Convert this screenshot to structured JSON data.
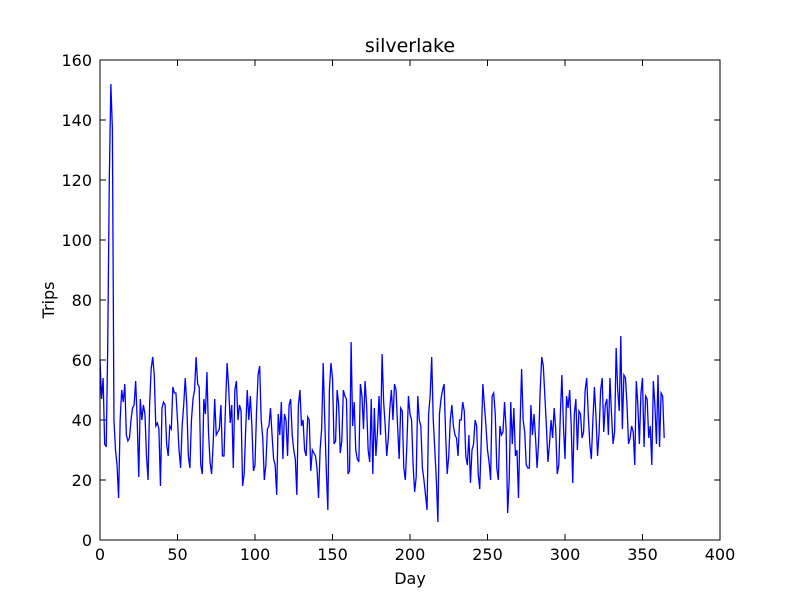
{
  "chart_data": {
    "type": "line",
    "title": "silverlake",
    "xlabel": "Day",
    "ylabel": "Trips",
    "color": "#0000ff",
    "xlim": [
      0,
      400
    ],
    "xticks": [
      0,
      50,
      100,
      150,
      200,
      250,
      300,
      350,
      400
    ],
    "ylim": [
      0,
      160
    ],
    "yticks": [
      0,
      20,
      40,
      60,
      80,
      100,
      120,
      140,
      160
    ],
    "x": [
      0,
      1,
      2,
      3,
      4,
      5,
      6,
      7,
      8,
      9,
      10,
      11,
      12,
      13,
      14,
      15,
      16,
      17,
      18,
      19,
      20,
      21,
      22,
      23,
      24,
      25,
      26,
      27,
      28,
      29,
      30,
      31,
      32,
      33,
      34,
      35,
      36,
      37,
      38,
      39,
      40,
      41,
      42,
      43,
      44,
      45,
      46,
      47,
      48,
      49,
      50,
      51,
      52,
      53,
      54,
      55,
      56,
      57,
      58,
      59,
      60,
      61,
      62,
      63,
      64,
      65,
      66,
      67,
      68,
      69,
      70,
      71,
      72,
      73,
      74,
      75,
      76,
      77,
      78,
      79,
      80,
      81,
      82,
      83,
      84,
      85,
      86,
      87,
      88,
      89,
      90,
      91,
      92,
      93,
      94,
      95,
      96,
      97,
      98,
      99,
      100,
      101,
      102,
      103,
      104,
      105,
      106,
      107,
      108,
      109,
      110,
      111,
      112,
      113,
      114,
      115,
      116,
      117,
      118,
      119,
      120,
      121,
      122,
      123,
      124,
      125,
      126,
      127,
      128,
      129,
      130,
      131,
      132,
      133,
      134,
      135,
      136,
      137,
      138,
      139,
      140,
      141,
      142,
      143,
      144,
      145,
      146,
      147,
      148,
      149,
      150,
      151,
      152,
      153,
      154,
      155,
      156,
      157,
      158,
      159,
      160,
      161,
      162,
      163,
      164,
      165,
      166,
      167,
      168,
      169,
      170,
      171,
      172,
      173,
      174,
      175,
      176,
      177,
      178,
      179,
      180,
      181,
      182,
      183,
      184,
      185,
      186,
      187,
      188,
      189,
      190,
      191,
      192,
      193,
      194,
      195,
      196,
      197,
      198,
      199,
      200,
      201,
      202,
      203,
      204,
      205,
      206,
      207,
      208,
      209,
      210,
      211,
      212,
      213,
      214,
      215,
      216,
      217,
      218,
      219,
      220,
      221,
      222,
      223,
      224,
      225,
      226,
      227,
      228,
      229,
      230,
      231,
      232,
      233,
      234,
      235,
      236,
      237,
      238,
      239,
      240,
      241,
      242,
      243,
      244,
      245,
      246,
      247,
      248,
      249,
      250,
      251,
      252,
      253,
      254,
      255,
      256,
      257,
      258,
      259,
      260,
      261,
      262,
      263,
      264,
      265,
      266,
      267,
      268,
      269,
      270,
      271,
      272,
      273,
      274,
      275,
      276,
      277,
      278,
      279,
      280,
      281,
      282,
      283,
      284,
      285,
      286,
      287,
      288,
      289,
      290,
      291,
      292,
      293,
      294,
      295,
      296,
      297,
      298,
      299,
      300,
      301,
      302,
      303,
      304,
      305,
      306,
      307,
      308,
      309,
      310,
      311,
      312,
      313,
      314,
      315,
      316,
      317,
      318,
      319,
      320,
      321,
      322,
      323,
      324,
      325,
      326,
      327,
      328,
      329,
      330,
      331,
      332,
      333,
      334,
      335,
      336,
      337,
      338,
      339,
      340,
      341,
      342,
      343,
      344,
      345,
      346,
      347,
      348,
      349,
      350,
      351,
      352,
      353,
      354,
      355,
      356,
      357,
      358,
      359,
      360,
      361,
      362,
      363,
      364
    ],
    "values": [
      60,
      47,
      54,
      32,
      31,
      65,
      120,
      152,
      137,
      40,
      30,
      25,
      14,
      40,
      50,
      46,
      52,
      35,
      33,
      34,
      40,
      44,
      45,
      53,
      40,
      21,
      47,
      40,
      45,
      42,
      28,
      20,
      45,
      57,
      61,
      55,
      38,
      39,
      37,
      18,
      44,
      46,
      45,
      32,
      28,
      38,
      37,
      51,
      49,
      49,
      40,
      30,
      24,
      38,
      45,
      54,
      45,
      28,
      24,
      40,
      47,
      50,
      61,
      52,
      51,
      25,
      22,
      47,
      42,
      56,
      36,
      26,
      22,
      32,
      47,
      35,
      36,
      37,
      45,
      28,
      28,
      45,
      59,
      51,
      39,
      45,
      24,
      50,
      53,
      40,
      45,
      43,
      18,
      22,
      37,
      50,
      40,
      48,
      38,
      23,
      25,
      43,
      55,
      58,
      40,
      34,
      20,
      25,
      37,
      38,
      44,
      35,
      27,
      25,
      15,
      42,
      35,
      46,
      27,
      42,
      40,
      28,
      45,
      47,
      35,
      30,
      27,
      15,
      45,
      50,
      38,
      40,
      30,
      28,
      41,
      40,
      23,
      30,
      29,
      28,
      24,
      14,
      30,
      37,
      59,
      40,
      23,
      10,
      50,
      59,
      54,
      32,
      33,
      50,
      45,
      29,
      33,
      50,
      48,
      47,
      22,
      23,
      66,
      38,
      46,
      30,
      27,
      26,
      52,
      48,
      37,
      53,
      45,
      30,
      26,
      47,
      22,
      44,
      28,
      36,
      48,
      35,
      62,
      46,
      38,
      28,
      34,
      44,
      50,
      40,
      52,
      50,
      38,
      27,
      44,
      43,
      24,
      20,
      32,
      48,
      42,
      40,
      25,
      16,
      21,
      48,
      40,
      38,
      24,
      20,
      15,
      10,
      42,
      48,
      61,
      40,
      30,
      20,
      6,
      42,
      47,
      50,
      52,
      35,
      22,
      28,
      40,
      45,
      38,
      35,
      34,
      28,
      40,
      40,
      46,
      43,
      28,
      25,
      35,
      19,
      30,
      32,
      40,
      38,
      22,
      17,
      34,
      52,
      45,
      38,
      30,
      26,
      20,
      48,
      49,
      42,
      24,
      20,
      38,
      35,
      36,
      46,
      37,
      9,
      20,
      46,
      32,
      44,
      28,
      30,
      14,
      38,
      57,
      40,
      36,
      25,
      24,
      24,
      45,
      35,
      42,
      34,
      24,
      33,
      50,
      61,
      58,
      48,
      38,
      26,
      32,
      40,
      34,
      44,
      37,
      22,
      25,
      42,
      55,
      38,
      27,
      48,
      44,
      50,
      38,
      19,
      42,
      47,
      30,
      43,
      42,
      34,
      36,
      50,
      54,
      42,
      32,
      27,
      40,
      51,
      41,
      28,
      36,
      50,
      54,
      36,
      45,
      47,
      35,
      54,
      42,
      32,
      36,
      64,
      50,
      43,
      68,
      37,
      55,
      54,
      45,
      32,
      34,
      38,
      36,
      25,
      53,
      45,
      32,
      49,
      54,
      31,
      48,
      47,
      34,
      38,
      25,
      53,
      45,
      32,
      55,
      31,
      49,
      48,
      34
    ]
  }
}
